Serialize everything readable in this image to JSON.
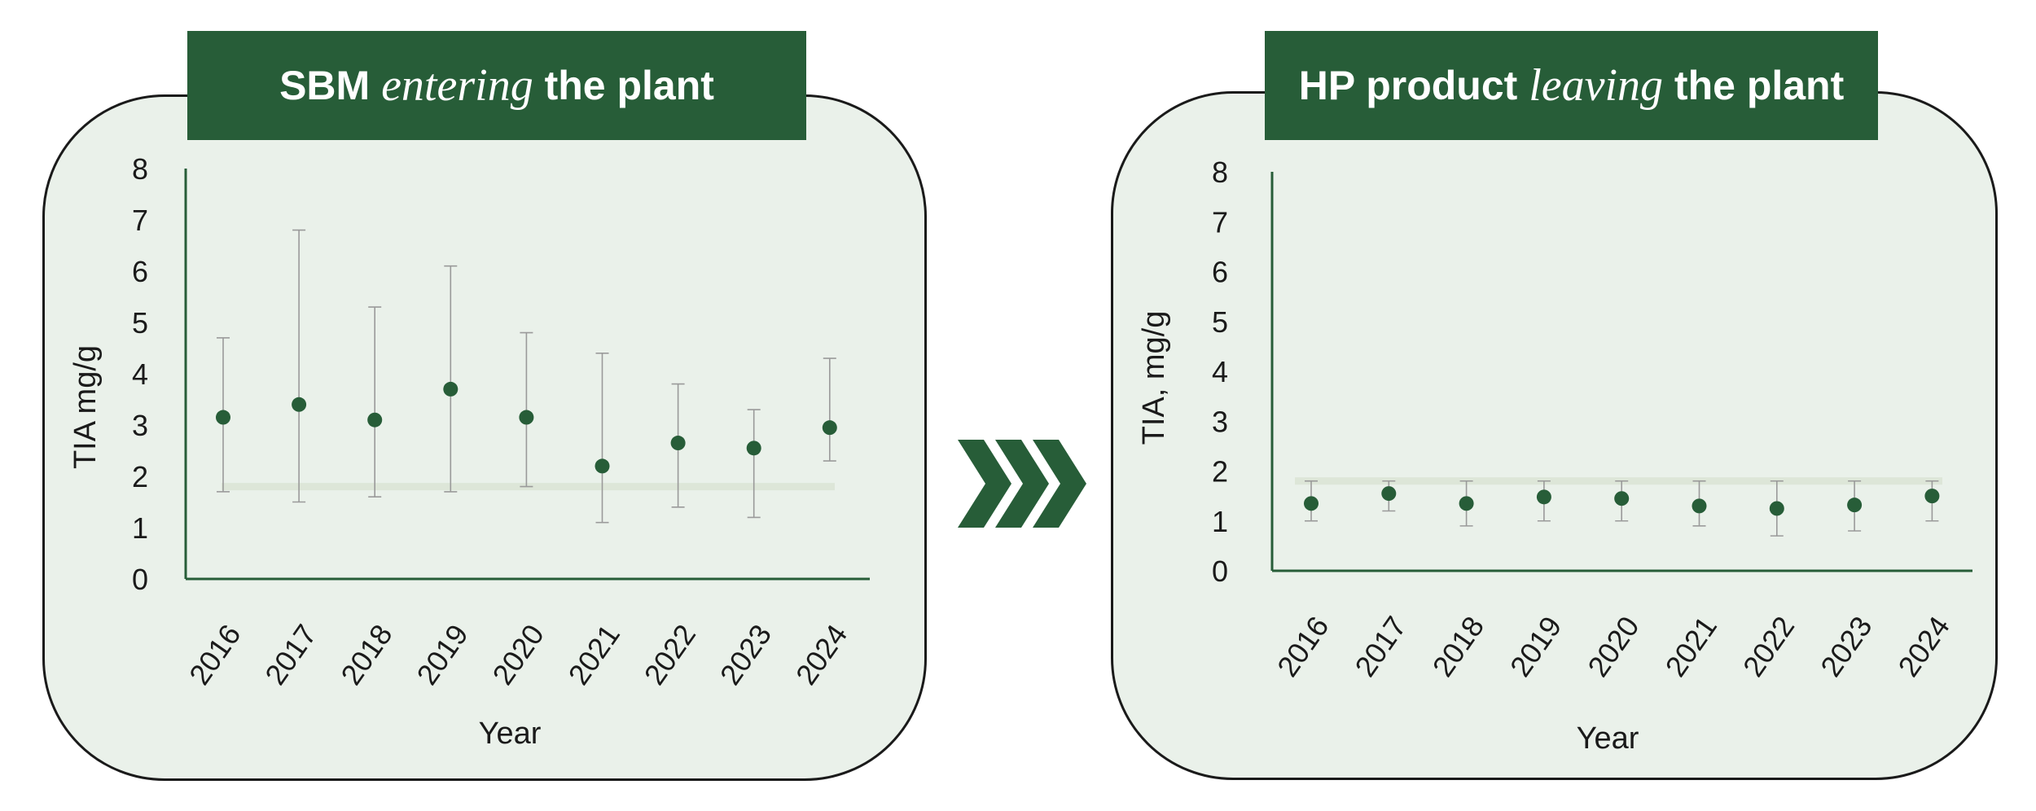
{
  "colors": {
    "accent": "#275d38",
    "panel_bg": "#eaf1ea",
    "threshold": "#dde6d8",
    "error_bar": "#9a9a9a"
  },
  "arrow_icon": "triple-chevron-right-icon",
  "banner_left": {
    "pre": "SBM ",
    "em": "entering",
    "post": " the plant"
  },
  "banner_right": {
    "pre": "HP product ",
    "em": "leaving",
    "post": " the plant"
  },
  "chart_data": [
    {
      "type": "scatter",
      "xlabel": "Year",
      "ylabel": "TIA mg/g",
      "ylim": [
        0,
        8
      ],
      "yticks": [
        "0",
        "1",
        "2",
        "3",
        "4",
        "5",
        "6",
        "7",
        "8"
      ],
      "categories": [
        "2016",
        "2017",
        "2018",
        "2019",
        "2020",
        "2021",
        "2022",
        "2023",
        "2024"
      ],
      "values": [
        3.15,
        3.4,
        3.1,
        3.7,
        3.15,
        2.2,
        2.65,
        2.55,
        2.95
      ],
      "err_low": [
        1.7,
        1.5,
        1.6,
        1.7,
        1.8,
        1.1,
        1.4,
        1.2,
        2.3
      ],
      "err_high": [
        4.7,
        6.8,
        5.3,
        6.1,
        4.8,
        4.4,
        3.8,
        3.3,
        4.3
      ],
      "reference_line": 1.8,
      "grid": false
    },
    {
      "type": "scatter",
      "xlabel": "Year",
      "ylabel": "TIA,  mg/g",
      "ylim": [
        0,
        8
      ],
      "yticks": [
        "0",
        "1",
        "2",
        "3",
        "4",
        "5",
        "6",
        "7",
        "8"
      ],
      "categories": [
        "2016",
        "2017",
        "2018",
        "2019",
        "2020",
        "2021",
        "2022",
        "2023",
        "2024"
      ],
      "values": [
        1.35,
        1.55,
        1.35,
        1.48,
        1.45,
        1.3,
        1.25,
        1.32,
        1.5
      ],
      "err_low": [
        1.0,
        1.2,
        0.9,
        1.0,
        1.0,
        0.9,
        0.7,
        0.8,
        1.0
      ],
      "err_high": [
        1.8,
        1.8,
        1.8,
        1.8,
        1.8,
        1.8,
        1.8,
        1.8,
        1.8
      ],
      "reference_line": 1.8,
      "grid": false
    }
  ]
}
